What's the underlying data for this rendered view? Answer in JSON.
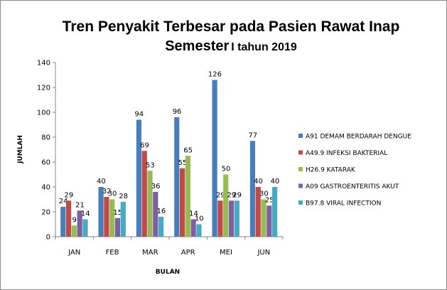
{
  "chart_data": {
    "type": "bar",
    "title": "Tren Penyakit Terbesar pada Pasien Rawat Inap",
    "title_line2_main": "Semester",
    "title_line2_small": "I tahun  2019",
    "xlabel": "BULAN",
    "ylabel": "JUMLAH",
    "ylim": [
      0,
      140
    ],
    "yticks": [
      0,
      20,
      40,
      60,
      80,
      100,
      120,
      140
    ],
    "grid": false,
    "legend_position": "right",
    "categories": [
      "JAN",
      "FEB",
      "MAR",
      "APR",
      "MEI",
      "JUN"
    ],
    "series": [
      {
        "name": "A91 DEMAM BERDARAH  DENGUE",
        "color": "#4a7ebb",
        "values": [
          24,
          40,
          94,
          96,
          126,
          77
        ]
      },
      {
        "name": "A49.9 INFEKSI BAKTERIAL",
        "color": "#be4b48",
        "values": [
          29,
          32,
          69,
          55,
          29,
          40
        ]
      },
      {
        "name": "H26.9 KATARAK",
        "color": "#98b954",
        "values": [
          9,
          30,
          53,
          65,
          50,
          30
        ]
      },
      {
        "name": "A09 GASTROENTERITIS  AKUT",
        "color": "#7d60a0",
        "values": [
          21,
          15,
          36,
          14,
          29,
          25
        ]
      },
      {
        "name": "B97.8 VIRAL INFECTION",
        "color": "#46aac5",
        "values": [
          14,
          28,
          16,
          10,
          29,
          40
        ]
      }
    ]
  }
}
